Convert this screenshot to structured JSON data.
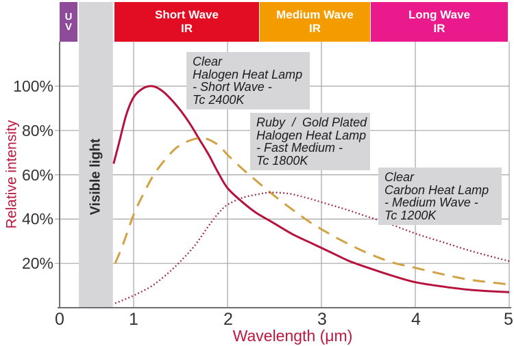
{
  "title_bands": [
    {
      "line1": "U",
      "line2": "V",
      "color": "#8d4b9a"
    },
    {
      "line1": "Short Wave",
      "line2": "IR",
      "color": "#e30d23"
    },
    {
      "line1": "Medium Wave",
      "line2": "IR",
      "color": "#f49b00"
    },
    {
      "line1": "Long Wave",
      "line2": "IR",
      "color": "#ea1a8c"
    }
  ],
  "visible_light_label": "Visible light",
  "axes": {
    "y_title": "Relative intensity",
    "x_title": "Wavelength (μm)",
    "y_ticks": [
      "100%",
      "80%",
      "60%",
      "40%",
      "20%"
    ],
    "x_ticks": [
      "0",
      "1",
      "2",
      "3",
      "4",
      "5"
    ]
  },
  "annotations": [
    {
      "lines": [
        "Clear",
        "Halogen Heat Lamp",
        "- Short Wave -",
        "Tc 2400K"
      ]
    },
    {
      "lines": [
        "Ruby  /  Gold Plated",
        "Halogen Heat Lamp",
        "- Fast Medium -",
        "Tc 1800K"
      ]
    },
    {
      "lines": [
        "Clear",
        "Carbon Heat Lamp",
        "- Medium Wave -",
        "Tc 1200K"
      ]
    }
  ],
  "chart_data": {
    "type": "line",
    "title": "",
    "xlabel": "Wavelength (μm)",
    "ylabel": "Relative intensity",
    "xlim": [
      0,
      5
    ],
    "ylim": [
      0,
      110
    ],
    "x_ticks": [
      0,
      1,
      2,
      3,
      4,
      5
    ],
    "y_ticks": [
      20,
      40,
      60,
      80,
      100
    ],
    "y_tick_format": "percent",
    "grid": true,
    "spectral_bands": [
      {
        "label": "UV",
        "color": "#8d4b9a",
        "x_um": [
          0.0,
          0.24
        ]
      },
      {
        "label": "Short Wave IR",
        "color": "#e30d23",
        "x_um": [
          0.74,
          2.34
        ]
      },
      {
        "label": "Medium Wave IR",
        "color": "#f49b00",
        "x_um": [
          2.34,
          3.52
        ]
      },
      {
        "label": "Long Wave IR",
        "color": "#ea1a8c",
        "x_um": [
          3.52,
          5.0
        ]
      }
    ],
    "regions": [
      {
        "label": "Visible light",
        "x_um": [
          0.26,
          0.72
        ],
        "color": "#d6d6d8"
      }
    ],
    "series": [
      {
        "name": "Clear Halogen Heat Lamp - Short Wave - Tc 2400K",
        "style": "solid",
        "color": "#b6123c",
        "points": [
          [
            0.73,
            65
          ],
          [
            0.8,
            74
          ],
          [
            0.9,
            87
          ],
          [
            1.0,
            95
          ],
          [
            1.1,
            99
          ],
          [
            1.2,
            100
          ],
          [
            1.3,
            98
          ],
          [
            1.4,
            94
          ],
          [
            1.5,
            89
          ],
          [
            1.6,
            83
          ],
          [
            1.7,
            76
          ],
          [
            1.8,
            69
          ],
          [
            1.9,
            61
          ],
          [
            2.0,
            54
          ],
          [
            2.15,
            48
          ],
          [
            2.3,
            43
          ],
          [
            2.5,
            38
          ],
          [
            2.7,
            33
          ],
          [
            2.9,
            29
          ],
          [
            3.1,
            25
          ],
          [
            3.3,
            21
          ],
          [
            3.5,
            18
          ],
          [
            3.75,
            14.5
          ],
          [
            4.0,
            11.5
          ],
          [
            4.3,
            9.5
          ],
          [
            4.6,
            8
          ],
          [
            5.0,
            7
          ]
        ]
      },
      {
        "name": "Ruby / Gold Plated Halogen Heat Lamp - Fast Medium - Tc 1800K",
        "style": "dashed",
        "color": "#d2a144",
        "points": [
          [
            0.75,
            20
          ],
          [
            0.85,
            28
          ],
          [
            1.0,
            42
          ],
          [
            1.1,
            51
          ],
          [
            1.2,
            59
          ],
          [
            1.3,
            65
          ],
          [
            1.45,
            72
          ],
          [
            1.6,
            75.5
          ],
          [
            1.75,
            76.5
          ],
          [
            1.9,
            73.5
          ],
          [
            2.0,
            69
          ],
          [
            2.15,
            63
          ],
          [
            2.3,
            57.5
          ],
          [
            2.5,
            50.5
          ],
          [
            2.7,
            44
          ],
          [
            2.9,
            38
          ],
          [
            3.1,
            33
          ],
          [
            3.3,
            28.5
          ],
          [
            3.5,
            24.5
          ],
          [
            3.75,
            20.5
          ],
          [
            4.0,
            18
          ],
          [
            4.3,
            15
          ],
          [
            4.6,
            12.5
          ],
          [
            5.0,
            10.5
          ]
        ]
      },
      {
        "name": "Clear Carbon Heat Lamp - Medium Wave - Tc 1200K",
        "style": "dotted",
        "color": "#9a1e3f",
        "points": [
          [
            0.75,
            2
          ],
          [
            0.9,
            4
          ],
          [
            1.05,
            6.5
          ],
          [
            1.2,
            10
          ],
          [
            1.35,
            15
          ],
          [
            1.5,
            21
          ],
          [
            1.65,
            28
          ],
          [
            1.8,
            37
          ],
          [
            1.9,
            42.5
          ],
          [
            2.0,
            46.5
          ],
          [
            2.15,
            49.5
          ],
          [
            2.3,
            51
          ],
          [
            2.45,
            52
          ],
          [
            2.65,
            51.5
          ],
          [
            2.85,
            49.5
          ],
          [
            3.05,
            47
          ],
          [
            3.25,
            44.5
          ],
          [
            3.5,
            41
          ],
          [
            3.75,
            37.5
          ],
          [
            4.0,
            33.5
          ],
          [
            4.3,
            29.5
          ],
          [
            4.6,
            25.5
          ],
          [
            5.0,
            21
          ]
        ]
      }
    ]
  }
}
